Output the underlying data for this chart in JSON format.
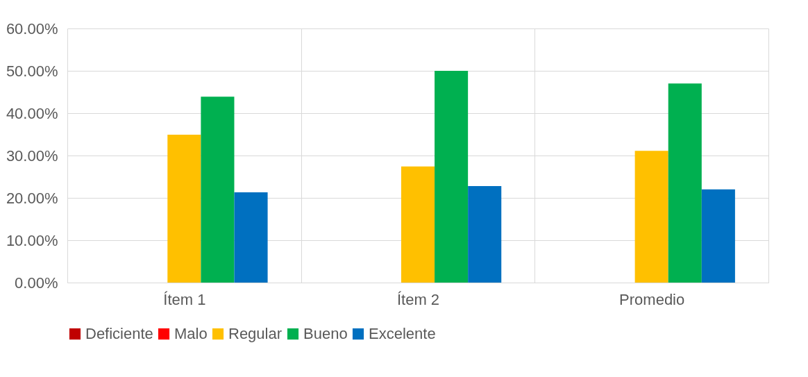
{
  "chart_data": {
    "type": "bar",
    "categories": [
      "Ítem 1",
      "Ítem 2",
      "Promedio"
    ],
    "series": [
      {
        "name": "Deficiente",
        "color": "#c00000",
        "values": [
          0,
          0,
          0
        ]
      },
      {
        "name": "Malo",
        "color": "#ff0000",
        "values": [
          0,
          0,
          0
        ]
      },
      {
        "name": "Regular",
        "color": "#ffc000",
        "values": [
          34.9,
          27.4,
          31.1
        ]
      },
      {
        "name": "Bueno",
        "color": "#00b050",
        "values": [
          43.9,
          50.0,
          47.0
        ]
      },
      {
        "name": "Excelente",
        "color": "#0070c0",
        "values": [
          21.3,
          22.8,
          22.0
        ]
      }
    ],
    "ylim": [
      0,
      60
    ],
    "yticks": [
      {
        "value": 0,
        "label": "0.00%"
      },
      {
        "value": 10,
        "label": "10.00%"
      },
      {
        "value": 20,
        "label": "20.00%"
      },
      {
        "value": 30,
        "label": "30.00%"
      },
      {
        "value": 40,
        "label": "40.00%"
      },
      {
        "value": 50,
        "label": "50.00%"
      },
      {
        "value": 60,
        "label": "60.00%"
      }
    ],
    "grid": true,
    "legend": "bottom"
  }
}
